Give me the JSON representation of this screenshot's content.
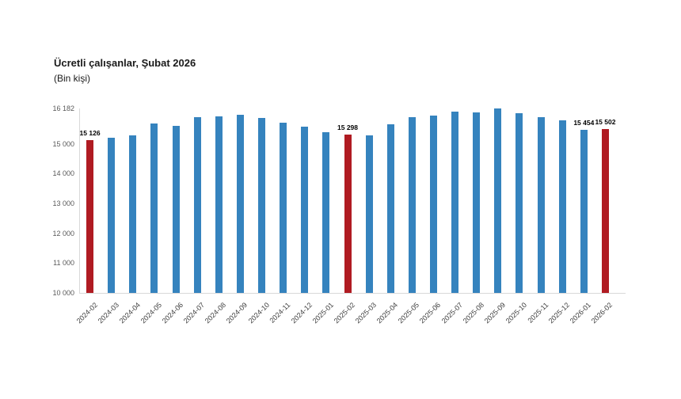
{
  "header": {
    "title": "Ücretli çalışanlar, Şubat 2026",
    "subtitle": "(Bin kişi)"
  },
  "colors": {
    "bar_blue": "#3583BE",
    "bar_red": "#B01B22",
    "axis_text": "#595959",
    "x_axis_text": "#404040",
    "value_label_text": "#000000",
    "axis_line": "#d9d9d9"
  },
  "chart_data": {
    "type": "bar",
    "title": "Ücretli çalışanlar, Şubat 2026",
    "subtitle": "(Bin kişi)",
    "xlabel": "",
    "ylabel": "Bin kişi",
    "grid": false,
    "legend_position": "none",
    "ylim": [
      10000,
      16182
    ],
    "yticks": [
      10000,
      11000,
      12000,
      13000,
      14000,
      15000,
      16182
    ],
    "ytick_labels": [
      "10 000",
      "11 000",
      "12 000",
      "13 000",
      "14 000",
      "15 000",
      "16 182"
    ],
    "categories": [
      "2024-02",
      "2024-03",
      "2024-04",
      "2024-05",
      "2024-06",
      "2024-07",
      "2024-08",
      "2024-09",
      "2024-10",
      "2024-11",
      "2024-12",
      "2025-01",
      "2025-02",
      "2025-03",
      "2025-04",
      "2025-05",
      "2025-06",
      "2025-07",
      "2025-08",
      "2025-09",
      "2025-10",
      "2025-11",
      "2025-12",
      "2026-01",
      "2026-02"
    ],
    "values": [
      15126,
      15210,
      15270,
      15690,
      15600,
      15900,
      15910,
      15980,
      15860,
      15715,
      15580,
      15390,
      15298,
      15270,
      15645,
      15890,
      15935,
      16085,
      16060,
      16182,
      16025,
      15890,
      15780,
      15454,
      15502
    ],
    "highlighted_categories": [
      "2024-02",
      "2025-02",
      "2026-02"
    ],
    "data_labels": {
      "2024-02": "15 126",
      "2025-02": "15 298",
      "2026-01": "15 454",
      "2026-02": "15 502"
    }
  }
}
